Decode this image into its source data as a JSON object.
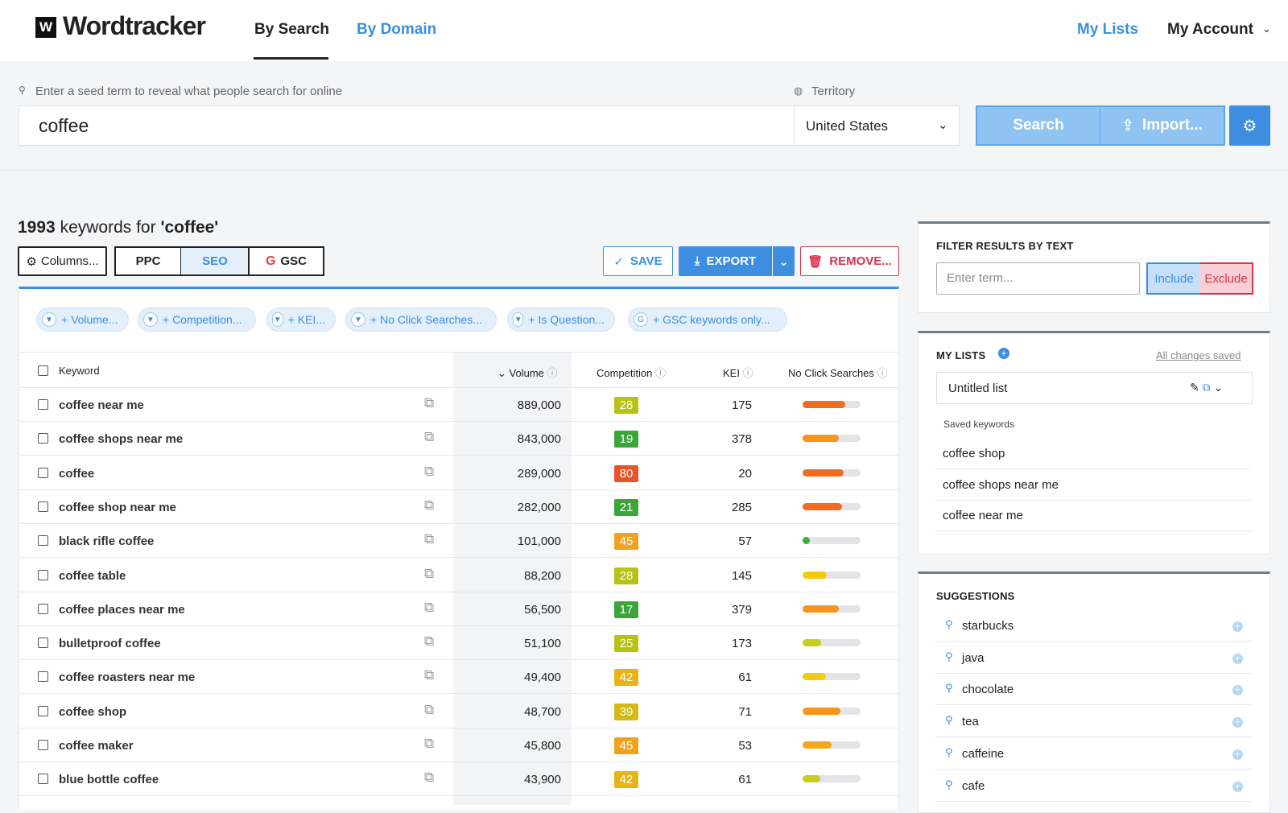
{
  "header": {
    "logo": "Wordtracker",
    "nav": [
      "By Search",
      "By Domain"
    ],
    "links": [
      "My Lists",
      "My Account"
    ]
  },
  "search": {
    "hint": "Enter a seed term to reveal what people search for online",
    "term": "coffee",
    "territory_label": "Territory",
    "territory": "United States",
    "search_button": "Search",
    "import_button": "Import..."
  },
  "results": {
    "count": "1993",
    "label": "keywords for",
    "query": "'coffee'",
    "toolbar": [
      "Columns...",
      "PPC",
      "SEO",
      "GSC"
    ],
    "actions": [
      "SAVE",
      "EXPORT",
      "REMOVE..."
    ]
  },
  "filters": [
    "+ Volume...",
    "+ Competition...",
    "+ KEI...",
    "+ No Click Searches...",
    "+ Is Question...",
    "+ GSC keywords only..."
  ],
  "table": {
    "columns": [
      "Keyword",
      "Volume",
      "Competition",
      "KEI",
      "No Click Searches"
    ],
    "rows": [
      {
        "keyword": "coffee near me",
        "volume": "889,000",
        "competition": 28,
        "competition_color": "#b8c214",
        "kei": 175,
        "no_click": 74,
        "no_click_color": "#f26b21"
      },
      {
        "keyword": "coffee shops near me",
        "volume": "843,000",
        "competition": 19,
        "competition_color": "#3aa63a",
        "kei": 378,
        "no_click": 63,
        "no_click_color": "#f7941d"
      },
      {
        "keyword": "coffee",
        "volume": "289,000",
        "competition": 80,
        "competition_color": "#e8542a",
        "kei": 20,
        "no_click": 71,
        "no_click_color": "#f26b21"
      },
      {
        "keyword": "coffee shop near me",
        "volume": "282,000",
        "competition": 21,
        "competition_color": "#3aa63a",
        "kei": 285,
        "no_click": 68,
        "no_click_color": "#f26b21"
      },
      {
        "keyword": "black rifle coffee",
        "volume": "101,000",
        "competition": 45,
        "competition_color": "#f0a21e",
        "kei": 57,
        "no_click": 10,
        "no_click_color": "#3ab03a"
      },
      {
        "keyword": "coffee table",
        "volume": "88,200",
        "competition": 28,
        "competition_color": "#b8c214",
        "kei": 145,
        "no_click": 42,
        "no_click_color": "#f2cc0c"
      },
      {
        "keyword": "coffee places near me",
        "volume": "56,500",
        "competition": 17,
        "competition_color": "#3aa63a",
        "kei": 379,
        "no_click": 62,
        "no_click_color": "#f7941d"
      },
      {
        "keyword": "bulletproof coffee",
        "volume": "51,100",
        "competition": 25,
        "competition_color": "#b8c214",
        "kei": 173,
        "no_click": 32,
        "no_click_color": "#c8cc1c"
      },
      {
        "keyword": "coffee roasters near me",
        "volume": "49,400",
        "competition": 42,
        "competition_color": "#e6b414",
        "kei": 61,
        "no_click": 40,
        "no_click_color": "#f2cc0c"
      },
      {
        "keyword": "coffee shop",
        "volume": "48,700",
        "competition": 39,
        "competition_color": "#d4b814",
        "kei": 71,
        "no_click": 65,
        "no_click_color": "#f7941d"
      },
      {
        "keyword": "coffee maker",
        "volume": "45,800",
        "competition": 45,
        "competition_color": "#f0a21e",
        "kei": 53,
        "no_click": 50,
        "no_click_color": "#f2a81c"
      },
      {
        "keyword": "blue bottle coffee",
        "volume": "43,900",
        "competition": 42,
        "competition_color": "#e6b414",
        "kei": 61,
        "no_click": 30,
        "no_click_color": "#c8cc1c"
      }
    ]
  },
  "sidebar": {
    "filter": {
      "title": "FILTER RESULTS BY TEXT",
      "placeholder": "Enter term...",
      "include": "Include",
      "exclude": "Exclude"
    },
    "lists": {
      "title": "MY LISTS",
      "status": "All changes saved",
      "selected": "Untitled list",
      "saved_label": "Saved keywords",
      "items": [
        "coffee shop",
        "coffee shops near me",
        "coffee near me"
      ]
    },
    "suggestions": {
      "title": "SUGGESTIONS",
      "items": [
        "starbucks",
        "java",
        "chocolate",
        "tea",
        "caffeine",
        "cafe"
      ]
    }
  }
}
